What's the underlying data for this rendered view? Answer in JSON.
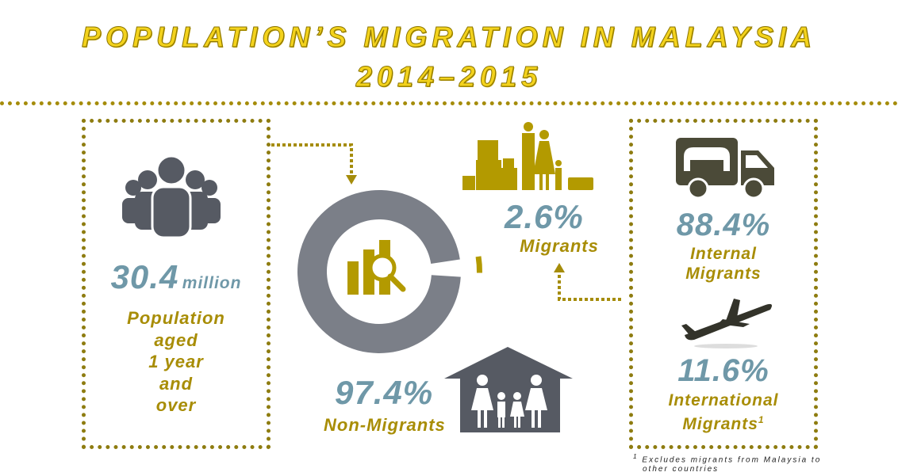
{
  "title": {
    "line1": "POPULATION’S MIGRATION IN MALAYSIA",
    "line2": "2014–2015"
  },
  "population": {
    "value": "30.4",
    "unit": "million",
    "label_lines": [
      "Population",
      "aged",
      "1 year",
      "and",
      "over"
    ]
  },
  "migrants": {
    "value": "2.6%",
    "label": "Migrants"
  },
  "non_migrants": {
    "value": "97.4%",
    "label": "Non-Migrants"
  },
  "internal": {
    "value": "88.4%",
    "label_lines": [
      "Internal",
      "Migrants"
    ]
  },
  "international": {
    "value": "11.6%",
    "label_lines": [
      "International",
      "Migrants"
    ],
    "sup": "1"
  },
  "footnote": {
    "marker": "1",
    "lines": [
      "Excludes migrants from Malaysia to",
      "other countries"
    ]
  },
  "colors": {
    "gold": "#b39a00",
    "grey": "#7b7f88",
    "icon": "#565a63",
    "teal": "#6f98a8"
  },
  "chart_data": {
    "type": "pie",
    "title": "Population's Migration in Malaysia 2014–2015",
    "categories": [
      "Non-Migrants",
      "Migrants"
    ],
    "values": [
      97.4,
      2.6
    ],
    "colors": [
      "#7b7f88",
      "#b39a00"
    ]
  }
}
